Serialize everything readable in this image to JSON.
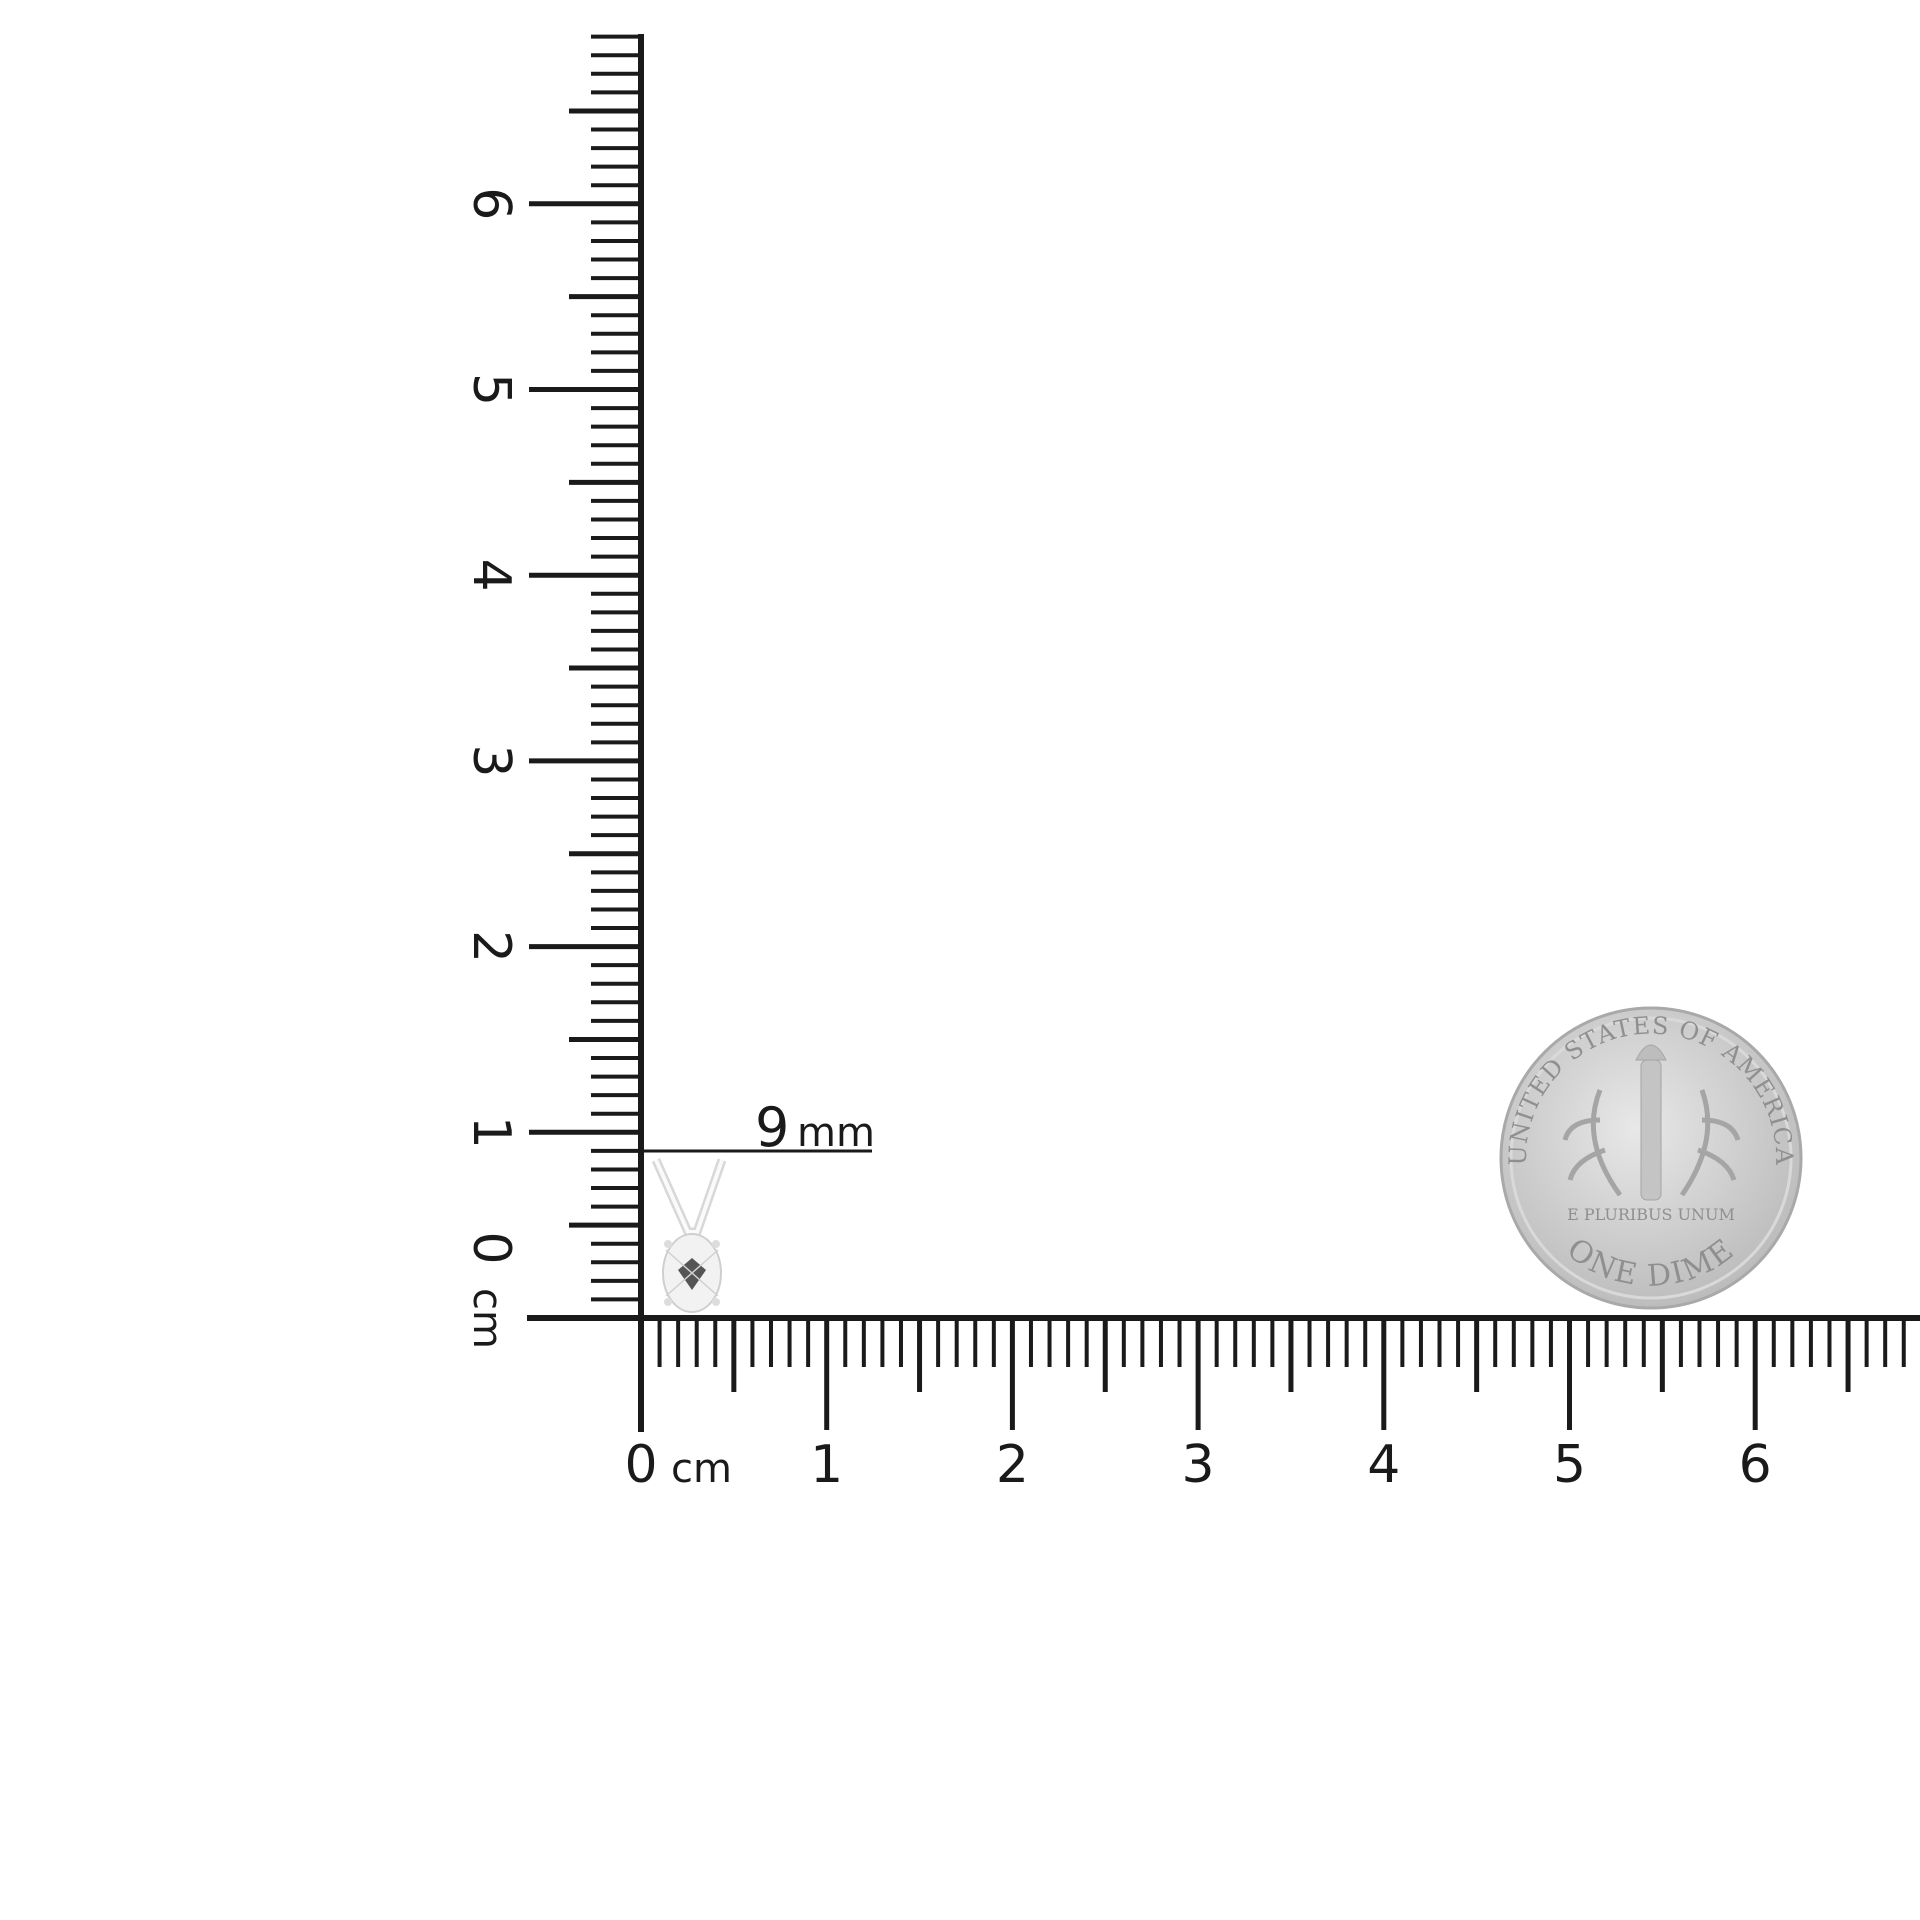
{
  "rulers": {
    "unit_label": "cm",
    "x_axis": {
      "labels": [
        "0",
        "1",
        "2",
        "3",
        "4",
        "5",
        "6"
      ]
    },
    "y_axis": {
      "labels": [
        "0",
        "1",
        "2",
        "3",
        "4",
        "5",
        "6"
      ]
    },
    "ink_color": "#1a1a1a"
  },
  "annotation": {
    "value": "9",
    "unit": "mm"
  },
  "product": {
    "name": "pendant",
    "metal_color": "#e6e6e6"
  },
  "reference_coin": {
    "type": "dime",
    "lettering_top": "UNITED STATES OF AMERICA",
    "lettering_bottom": "ONE DIME",
    "motto": "E PLURIBUS UNUM",
    "color": "#c8c8c8"
  }
}
